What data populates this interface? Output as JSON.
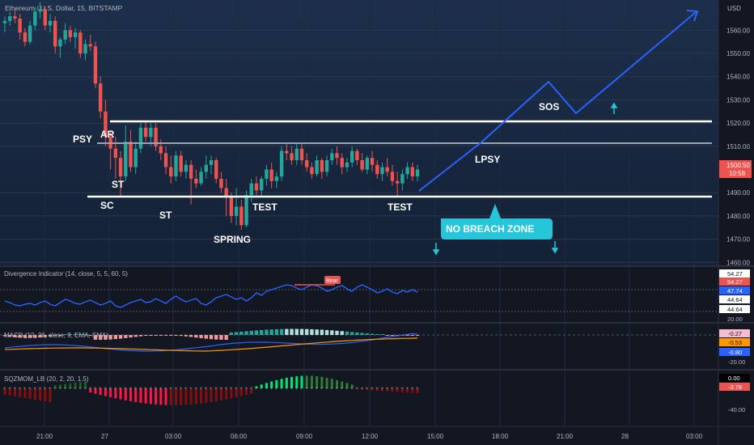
{
  "header": {
    "symbol_title": "Ethereum / U.S. Dollar, 15, BITSTAMP",
    "currency": "USD"
  },
  "colors": {
    "up": "#26a69a",
    "down": "#ef5350",
    "projection": "#2962ff",
    "lines": "#ffffff",
    "zone": "#26c6da",
    "bg_top": "#1c2f4a",
    "bg_bottom": "#131722"
  },
  "price_axis": {
    "ticks": [
      "1560.00",
      "1550.00",
      "1540.00",
      "1530.00",
      "1520.00",
      "1510.00",
      "1490.00",
      "1480.00",
      "1470.00",
      "1460.00"
    ],
    "tick_values": [
      1560,
      1550,
      1540,
      1530,
      1520,
      1510,
      1490,
      1480,
      1470,
      1460
    ],
    "current_price": "1500.50",
    "countdown": "10:58"
  },
  "time_axis": {
    "labels": [
      "21:00",
      "27",
      "03:00",
      "06:00",
      "09:00",
      "12:00",
      "15:00",
      "18:00",
      "21:00",
      "28",
      "03:00"
    ]
  },
  "annotations": {
    "psy": "PSY",
    "ar": "AR",
    "st1": "ST",
    "sc": "SC",
    "st2": "ST",
    "spring": "SPRING",
    "test1": "TEST",
    "test2": "TEST",
    "lpsy": "LPSY",
    "sos": "SOS",
    "no_breach": "NO BREACH ZONE"
  },
  "indicators": {
    "divergence": {
      "title": "Divergence Indicator (14, close, 5, 5, 60, 5)",
      "bear_label": "Bear",
      "axis": [
        "54.27",
        "54.27",
        "47.74",
        "44.64",
        "44.64",
        "20.00"
      ]
    },
    "macd": {
      "title": "MACD (12, 26, close, 9, EMA, SMA)",
      "axis": [
        "-0.27",
        "-0.53",
        "-0.80",
        "-20.00"
      ]
    },
    "sqzmom": {
      "title": "SQZMOM_LB (20, 2, 20, 1.5)",
      "axis": [
        "0.00",
        "-3.78",
        "-40.00"
      ]
    }
  },
  "chart_data": {
    "type": "candlestick",
    "title": "Ethereum / U.S. Dollar, 15, BITSTAMP",
    "ylabel": "USD",
    "ylim": [
      1458,
      1573
    ],
    "grid": true,
    "wyckoff_levels": {
      "upper_range": 1519,
      "mid_range": 1510,
      "lower_range": 1487
    },
    "candles": [
      [
        1563,
        1566,
        1559,
        1564
      ],
      [
        1564,
        1568,
        1562,
        1566
      ],
      [
        1566,
        1569,
        1563,
        1565
      ],
      [
        1565,
        1567,
        1556,
        1559
      ],
      [
        1559,
        1561,
        1553,
        1555
      ],
      [
        1555,
        1564,
        1554,
        1562
      ],
      [
        1562,
        1570,
        1560,
        1568
      ],
      [
        1568,
        1572,
        1565,
        1569
      ],
      [
        1569,
        1570,
        1560,
        1562
      ],
      [
        1562,
        1567,
        1559,
        1564
      ],
      [
        1564,
        1566,
        1550,
        1553
      ],
      [
        1553,
        1557,
        1548,
        1556
      ],
      [
        1556,
        1563,
        1554,
        1560
      ],
      [
        1560,
        1562,
        1555,
        1557
      ],
      [
        1557,
        1561,
        1552,
        1559
      ],
      [
        1559,
        1560,
        1548,
        1550
      ],
      [
        1550,
        1556,
        1547,
        1554
      ],
      [
        1554,
        1558,
        1551,
        1553
      ],
      [
        1553,
        1555,
        1535,
        1537
      ],
      [
        1537,
        1540,
        1522,
        1525
      ],
      [
        1525,
        1530,
        1510,
        1514
      ],
      [
        1514,
        1517,
        1500,
        1509
      ],
      [
        1509,
        1514,
        1496,
        1505
      ],
      [
        1505,
        1508,
        1488,
        1497
      ],
      [
        1497,
        1519,
        1495,
        1512
      ],
      [
        1512,
        1517,
        1499,
        1501
      ],
      [
        1501,
        1512,
        1498,
        1509
      ],
      [
        1509,
        1520,
        1507,
        1518
      ],
      [
        1518,
        1521,
        1512,
        1514
      ],
      [
        1514,
        1520,
        1510,
        1518
      ],
      [
        1518,
        1520,
        1508,
        1510
      ],
      [
        1510,
        1513,
        1504,
        1507
      ],
      [
        1507,
        1510,
        1498,
        1501
      ],
      [
        1501,
        1506,
        1494,
        1497
      ],
      [
        1497,
        1508,
        1495,
        1506
      ],
      [
        1506,
        1508,
        1497,
        1499
      ],
      [
        1499,
        1504,
        1496,
        1502
      ],
      [
        1502,
        1504,
        1485,
        1496
      ],
      [
        1496,
        1500,
        1492,
        1494
      ],
      [
        1494,
        1501,
        1493,
        1499
      ],
      [
        1499,
        1506,
        1496,
        1502
      ],
      [
        1502,
        1506,
        1498,
        1504
      ],
      [
        1504,
        1505,
        1494,
        1496
      ],
      [
        1496,
        1499,
        1490,
        1492
      ],
      [
        1492,
        1496,
        1480,
        1488
      ],
      [
        1488,
        1490,
        1477,
        1480
      ],
      [
        1480,
        1492,
        1476,
        1484
      ],
      [
        1484,
        1487,
        1474,
        1476
      ],
      [
        1476,
        1491,
        1475,
        1489
      ],
      [
        1489,
        1496,
        1486,
        1494
      ],
      [
        1494,
        1497,
        1489,
        1491
      ],
      [
        1491,
        1497,
        1488,
        1496
      ],
      [
        1496,
        1502,
        1493,
        1500
      ],
      [
        1500,
        1503,
        1492,
        1495
      ],
      [
        1495,
        1499,
        1492,
        1497
      ],
      [
        1497,
        1510,
        1495,
        1508
      ],
      [
        1508,
        1511,
        1504,
        1507
      ],
      [
        1507,
        1510,
        1502,
        1504
      ],
      [
        1504,
        1511,
        1502,
        1509
      ],
      [
        1509,
        1511,
        1502,
        1504
      ],
      [
        1504,
        1507,
        1499,
        1501
      ],
      [
        1501,
        1503,
        1496,
        1498
      ],
      [
        1498,
        1506,
        1497,
        1504
      ],
      [
        1504,
        1505,
        1496,
        1499
      ],
      [
        1499,
        1506,
        1497,
        1504
      ],
      [
        1504,
        1509,
        1502,
        1507
      ],
      [
        1507,
        1510,
        1502,
        1505
      ],
      [
        1505,
        1507,
        1498,
        1501
      ],
      [
        1501,
        1505,
        1499,
        1503
      ],
      [
        1503,
        1510,
        1501,
        1508
      ],
      [
        1508,
        1509,
        1502,
        1504
      ],
      [
        1504,
        1507,
        1499,
        1500
      ],
      [
        1500,
        1506,
        1498,
        1505
      ],
      [
        1505,
        1508,
        1499,
        1502
      ],
      [
        1502,
        1504,
        1496,
        1498
      ],
      [
        1498,
        1503,
        1495,
        1501
      ],
      [
        1501,
        1505,
        1497,
        1499
      ],
      [
        1499,
        1502,
        1493,
        1495
      ],
      [
        1495,
        1499,
        1488,
        1494
      ],
      [
        1494,
        1500,
        1491,
        1498
      ],
      [
        1498,
        1503,
        1496,
        1501
      ],
      [
        1501,
        1503,
        1495,
        1497
      ],
      [
        1497,
        1502,
        1495,
        1500
      ]
    ],
    "projection_path": [
      [
        1515,
        1490
      ],
      [
        1540,
        1509
      ],
      [
        1560,
        1530
      ],
      [
        1577,
        1537
      ],
      [
        1588,
        1524
      ],
      [
        1612,
        1545
      ],
      [
        1640,
        1565
      ]
    ]
  }
}
